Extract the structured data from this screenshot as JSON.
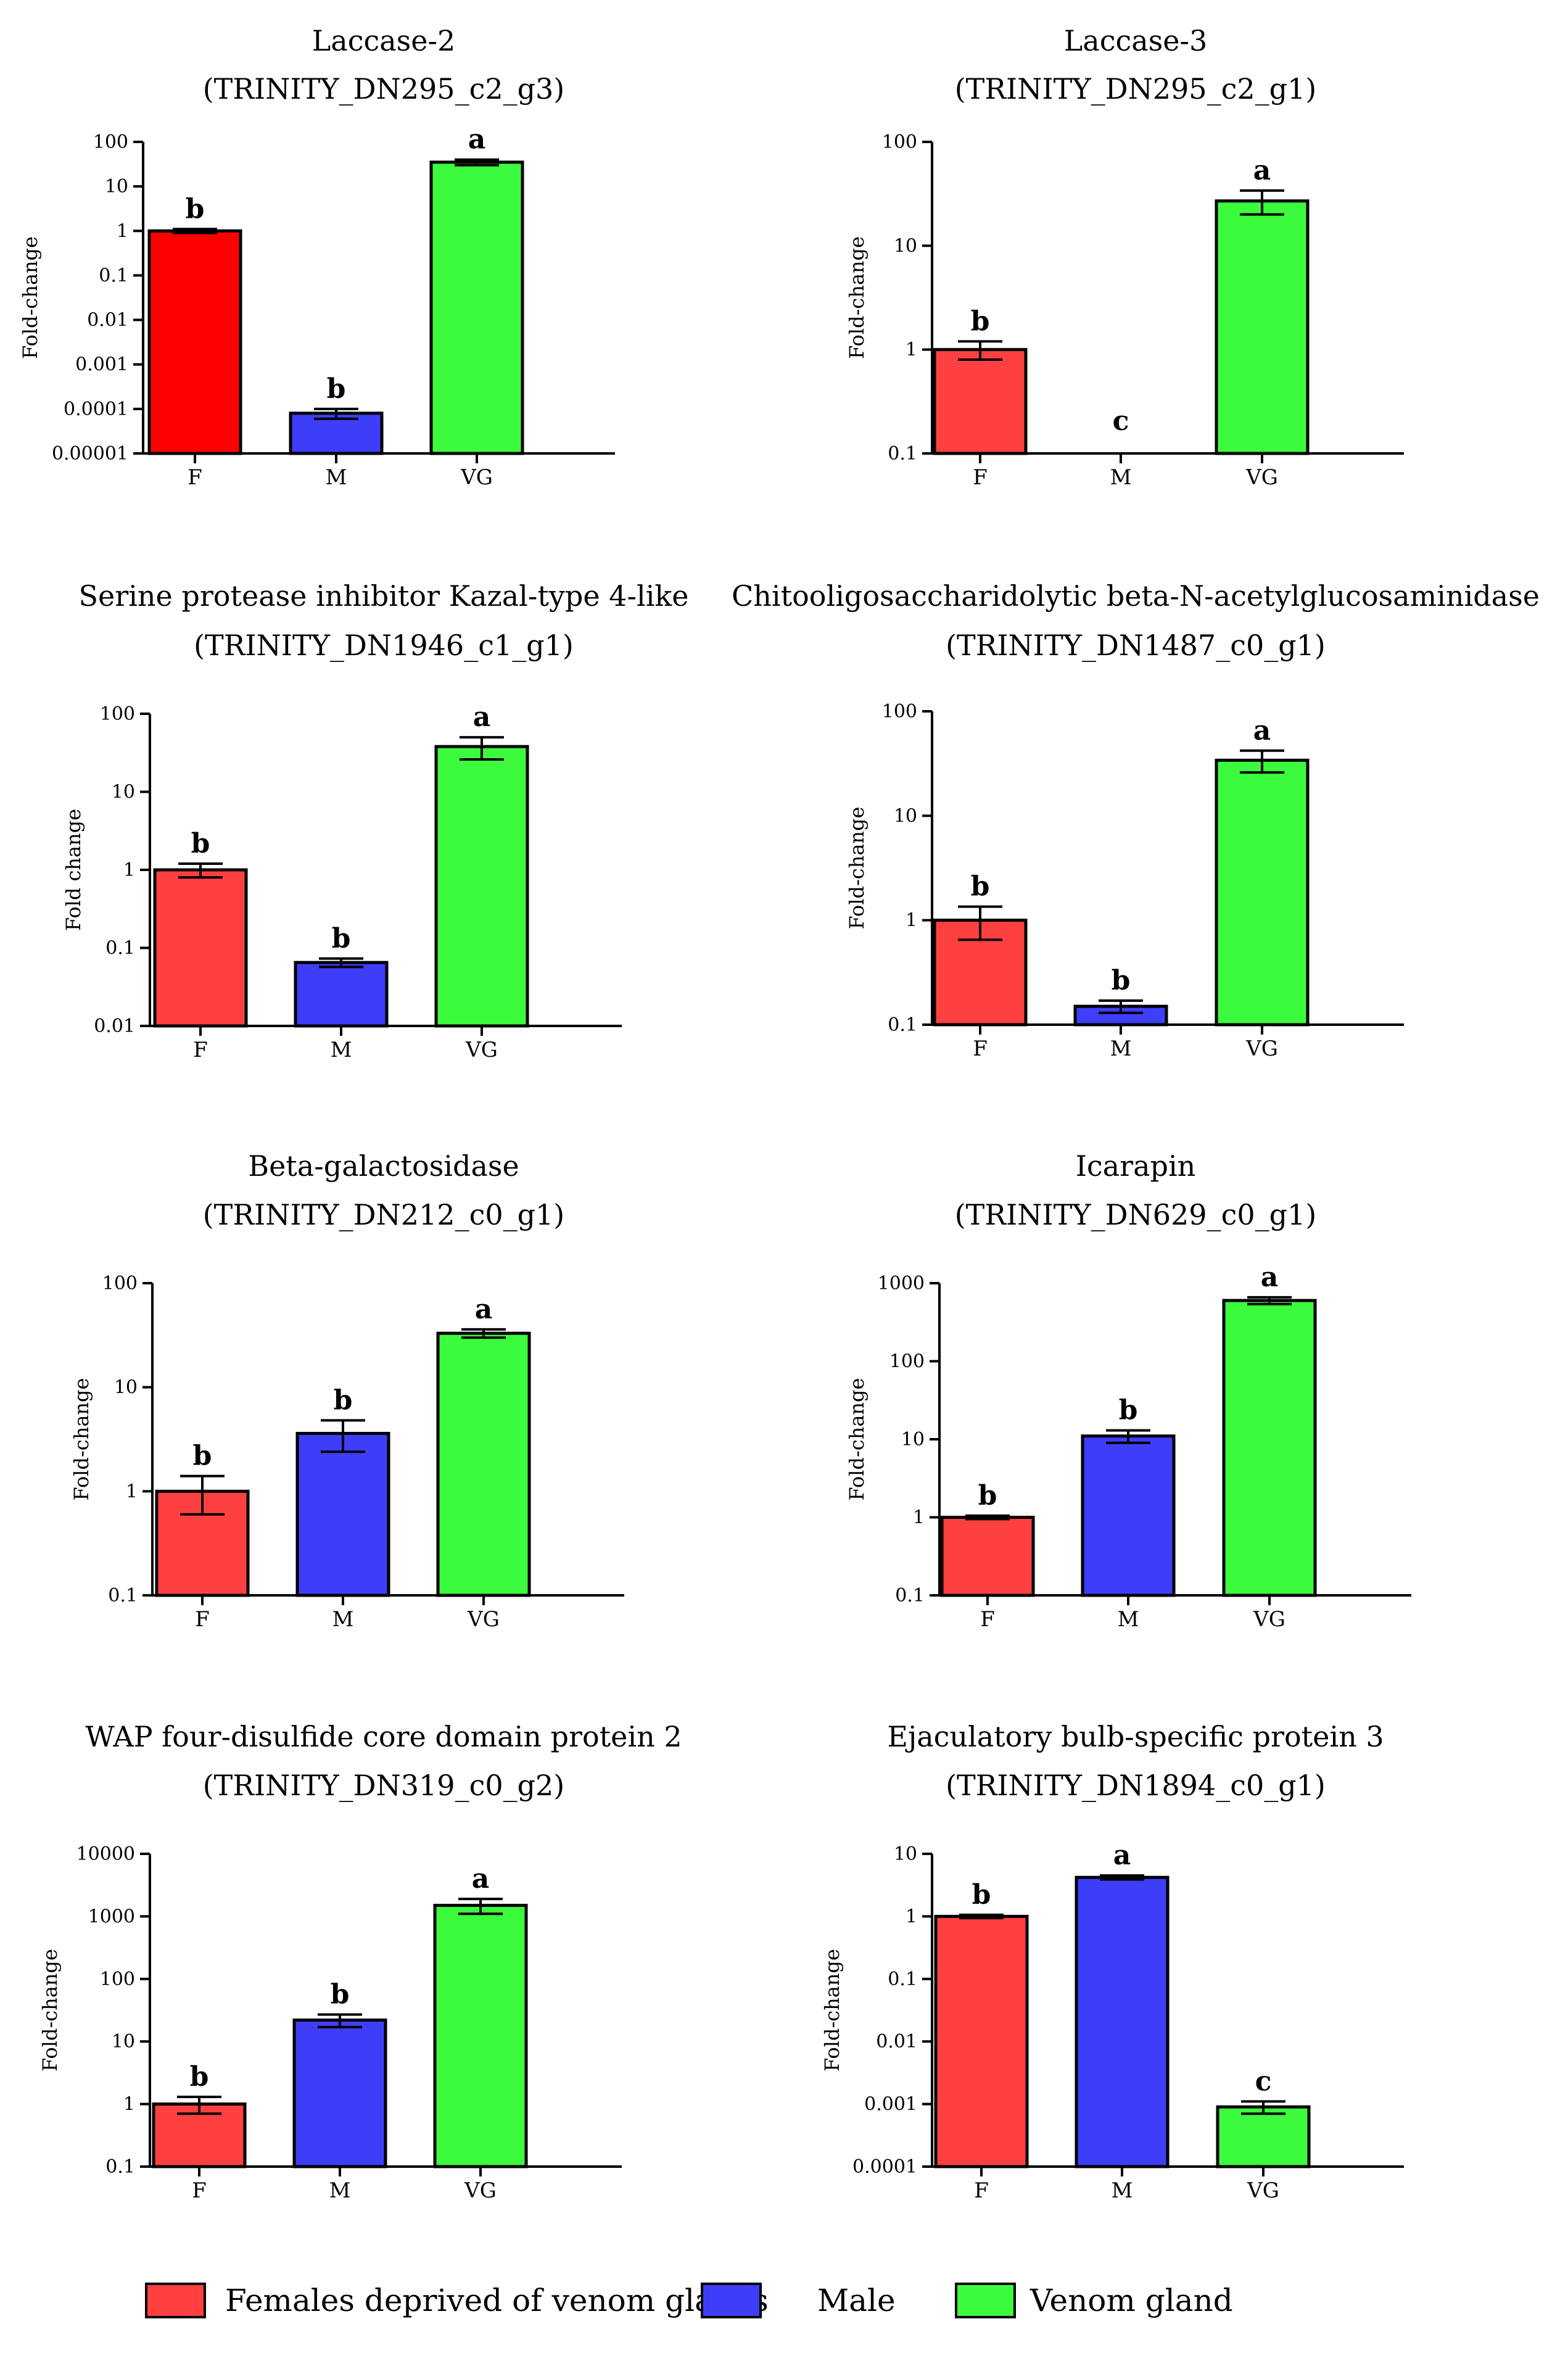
{
  "chart_data": [
    {
      "type": "bar",
      "title": "Laccase-2",
      "subtitle": "(TRINITY_DN295_c2_g3)",
      "ylabel": "Fold-change",
      "xlabel": "",
      "yscale": "log",
      "ylim": [
        1e-05,
        100
      ],
      "yticks": [
        "100",
        "10",
        "1",
        "0.1",
        "0.01",
        "0.001",
        "0.0001",
        "0.00001"
      ],
      "categories": [
        "F",
        "M",
        "VG"
      ],
      "values": [
        1,
        8e-05,
        35
      ],
      "error": [
        0.1,
        2e-05,
        5
      ],
      "letters": [
        "b",
        "b",
        "a"
      ]
    },
    {
      "type": "bar",
      "title": "Laccase-3",
      "subtitle": "(TRINITY_DN295_c2_g1)",
      "ylabel": "Fold-change",
      "xlabel": "",
      "yscale": "log",
      "ylim": [
        0.1,
        100
      ],
      "yticks": [
        "100",
        "10",
        "1",
        "0.1"
      ],
      "categories": [
        "F",
        "M",
        "VG"
      ],
      "values": [
        1,
        null,
        27
      ],
      "error": [
        0.2,
        null,
        7
      ],
      "letters": [
        "b",
        "c",
        "a"
      ]
    },
    {
      "type": "bar",
      "title": "Serine protease inhibitor Kazal-type 4-like",
      "subtitle": "(TRINITY_DN1946_c1_g1)",
      "ylabel": "Fold change",
      "xlabel": "",
      "yscale": "log",
      "ylim": [
        0.01,
        100
      ],
      "yticks": [
        "100",
        "10",
        "1",
        "0.1",
        "0.01"
      ],
      "categories": [
        "F",
        "M",
        "VG"
      ],
      "values": [
        1,
        0.065,
        38
      ],
      "error": [
        0.2,
        0.008,
        12
      ],
      "letters": [
        "b",
        "b",
        "a"
      ]
    },
    {
      "type": "bar",
      "title": "Chitooligosaccharidolytic beta-N-acetylglucosaminidase",
      "subtitle": "(TRINITY_DN1487_c0_g1)",
      "ylabel": "Fold-change",
      "xlabel": "",
      "yscale": "log",
      "ylim": [
        0.1,
        100
      ],
      "yticks": [
        "100",
        "10",
        "1",
        "0.1"
      ],
      "categories": [
        "F",
        "M",
        "VG"
      ],
      "values": [
        1,
        0.15,
        34
      ],
      "error": [
        0.35,
        0.02,
        8
      ],
      "letters": [
        "b",
        "b",
        "a"
      ]
    },
    {
      "type": "bar",
      "title": "Beta-galactosidase",
      "subtitle": "(TRINITY_DN212_c0_g1)",
      "ylabel": "Fold-change",
      "xlabel": "",
      "yscale": "log",
      "ylim": [
        0.1,
        100
      ],
      "yticks": [
        "100",
        "10",
        "1",
        "0.1"
      ],
      "categories": [
        "F",
        "M",
        "VG"
      ],
      "values": [
        1,
        3.6,
        33
      ],
      "error": [
        0.4,
        1.2,
        3
      ],
      "letters": [
        "b",
        "b",
        "a"
      ]
    },
    {
      "type": "bar",
      "title": "Icarapin",
      "subtitle": "(TRINITY_DN629_c0_g1)",
      "ylabel": "Fold-change",
      "xlabel": "",
      "yscale": "log",
      "ylim": [
        0.1,
        1000
      ],
      "yticks": [
        "1000",
        "100",
        "10",
        "1",
        "0.1"
      ],
      "categories": [
        "F",
        "M",
        "VG"
      ],
      "values": [
        1,
        11,
        600
      ],
      "error": [
        0.05,
        2,
        60
      ],
      "letters": [
        "b",
        "b",
        "a"
      ]
    },
    {
      "type": "bar",
      "title": "WAP four-disulfide core domain protein 2",
      "subtitle": "(TRINITY_DN319_c0_g2)",
      "ylabel": "Fold-change",
      "xlabel": "",
      "yscale": "log",
      "ylim": [
        0.1,
        10000
      ],
      "yticks": [
        "10000",
        "1000",
        "100",
        "10",
        "1",
        "0.1"
      ],
      "categories": [
        "F",
        "M",
        "VG"
      ],
      "values": [
        1,
        22,
        1500
      ],
      "error": [
        0.3,
        5,
        400
      ],
      "letters": [
        "b",
        "b",
        "a"
      ]
    },
    {
      "type": "bar",
      "title": "Ejaculatory bulb-specific protein 3",
      "subtitle": "(TRINITY_DN1894_c0_g1)",
      "ylabel": "Fold-change",
      "xlabel": "",
      "yscale": "log",
      "ylim": [
        0.0001,
        10
      ],
      "yticks": [
        "10",
        "1",
        "0.1",
        "0.01",
        "0.001",
        "0.0001"
      ],
      "categories": [
        "F",
        "M",
        "VG"
      ],
      "values": [
        1,
        4.2,
        0.0009
      ],
      "error": [
        0.06,
        0.3,
        0.0002
      ],
      "letters": [
        "b",
        "a",
        "c"
      ]
    }
  ],
  "colors": {
    "F": "#ff4040",
    "M": "#3e3ef8",
    "VG": "#3cfb3c",
    "laccase2_F": "#ff0000"
  },
  "legend": [
    {
      "key": "F",
      "label": "Females deprived of venom glands"
    },
    {
      "key": "M",
      "label": "Male"
    },
    {
      "key": "VG",
      "label": "Venom gland"
    }
  ]
}
